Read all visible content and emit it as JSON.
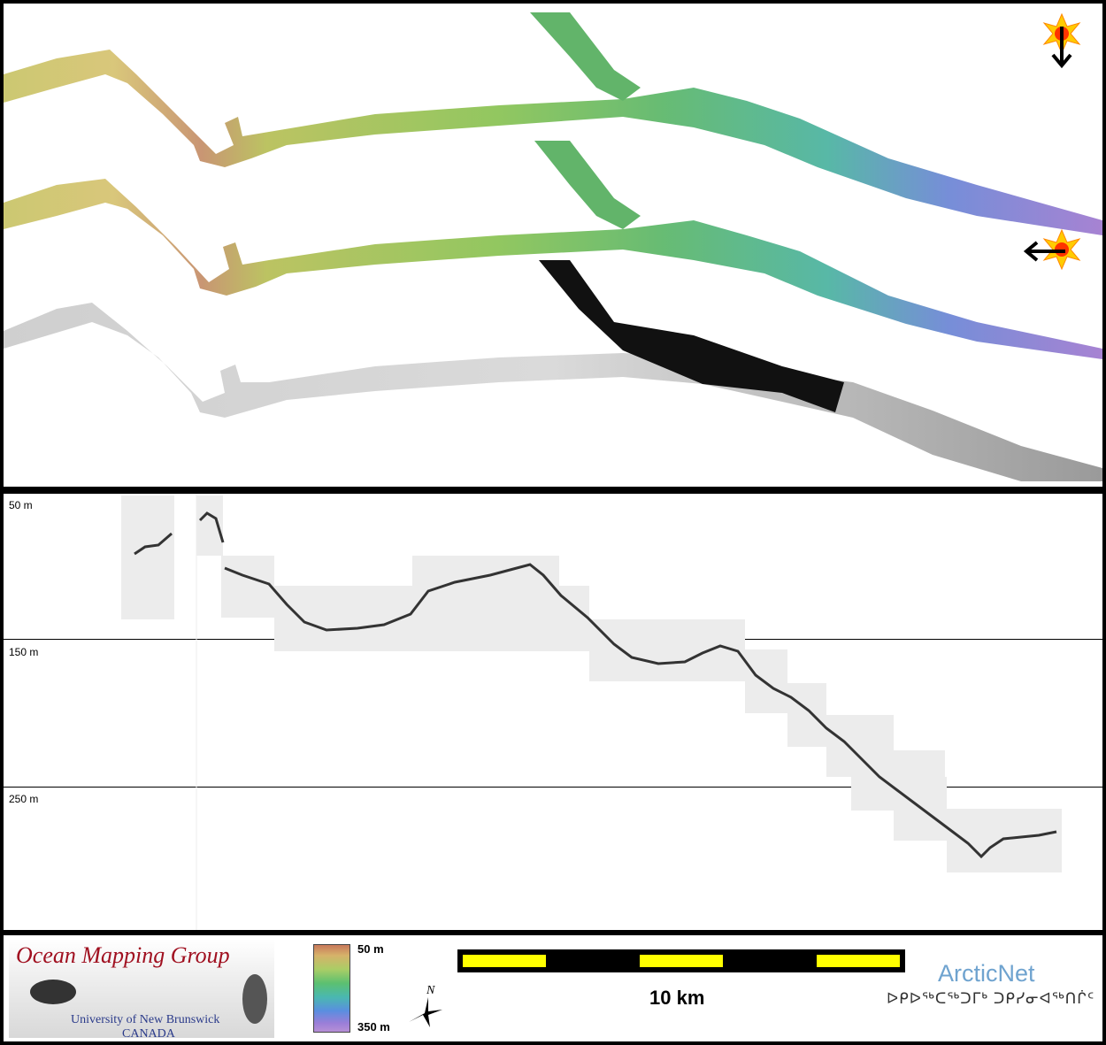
{
  "profile": {
    "depth_labels": [
      "50 m",
      "150 m",
      "250 m"
    ]
  },
  "legend": {
    "logo_title": "Ocean Mapping Group",
    "logo_university": "University of New Brunswick",
    "logo_country": "CANADA",
    "colorbar_top": "50 m",
    "colorbar_bottom": "350 m",
    "scale_label": "10 km",
    "arcticnet": "ArcticNet",
    "arcticnet_syllabics": "ᐅᑭᐅᖅᑕᖅᑐᒥᒃ ᑐᑭᓯᓂᐊᖅᑎᒌᑦ"
  },
  "icons": {
    "sun_illumination": "sun-icon",
    "arrow_down": "arrow-down-icon",
    "arrow_left": "arrow-left-icon",
    "north_arrow": "north-arrow-icon"
  },
  "colors": {
    "panel_border": "#000000",
    "scale_yellow": "#ffff00",
    "scale_black": "#000000",
    "omg_red": "#a01020",
    "arcticnet_blue": "#6fa3cf"
  }
}
